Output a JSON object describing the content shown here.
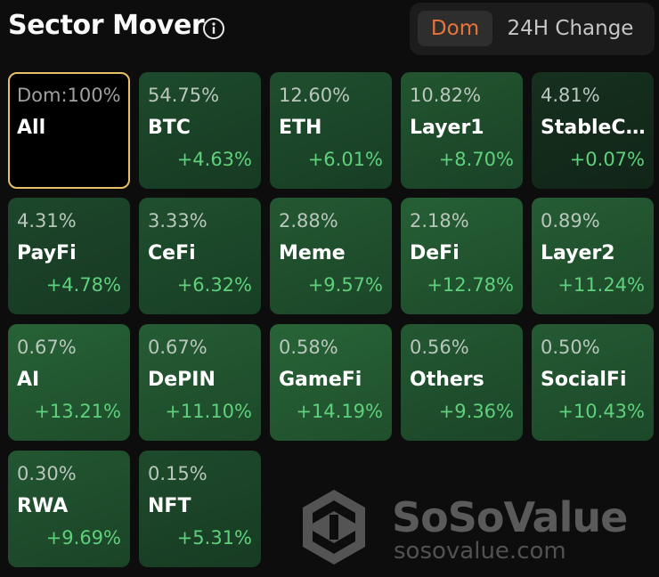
{
  "header": {
    "title": "Sector Mover",
    "info_icon": "info-icon",
    "toggle": {
      "dom_label": "Dom",
      "change_label": "24H Change",
      "active": "Dom"
    }
  },
  "colors": {
    "accent": "#e7743b",
    "positive": "#5fd07c",
    "selected_border": "#e6c067",
    "background": "#0d0d0d"
  },
  "sectors": [
    {
      "name": "All",
      "dom": "Dom:100%",
      "change": ""
    },
    {
      "name": "BTC",
      "dom": "54.75%",
      "change": "+4.63%"
    },
    {
      "name": "ETH",
      "dom": "12.60%",
      "change": "+6.01%"
    },
    {
      "name": "Layer1",
      "dom": "10.82%",
      "change": "+8.70%"
    },
    {
      "name": "StableC...",
      "dom": "4.81%",
      "change": "+0.07%"
    },
    {
      "name": "PayFi",
      "dom": "4.31%",
      "change": "+4.78%"
    },
    {
      "name": "CeFi",
      "dom": "3.33%",
      "change": "+6.32%"
    },
    {
      "name": "Meme",
      "dom": "2.88%",
      "change": "+9.57%"
    },
    {
      "name": "DeFi",
      "dom": "2.18%",
      "change": "+12.78%"
    },
    {
      "name": "Layer2",
      "dom": "0.89%",
      "change": "+11.24%"
    },
    {
      "name": "AI",
      "dom": "0.67%",
      "change": "+13.21%"
    },
    {
      "name": "DePIN",
      "dom": "0.67%",
      "change": "+11.10%"
    },
    {
      "name": "GameFi",
      "dom": "0.58%",
      "change": "+14.19%"
    },
    {
      "name": "Others",
      "dom": "0.56%",
      "change": "+9.36%"
    },
    {
      "name": "SocialFi",
      "dom": "0.50%",
      "change": "+10.43%"
    },
    {
      "name": "RWA",
      "dom": "0.30%",
      "change": "+9.69%"
    },
    {
      "name": "NFT",
      "dom": "0.15%",
      "change": "+5.31%"
    }
  ],
  "watermark": {
    "brand": "SoSoValue",
    "url": "sosovalue.com",
    "logo_icon": "sosovalue-logo-icon"
  }
}
